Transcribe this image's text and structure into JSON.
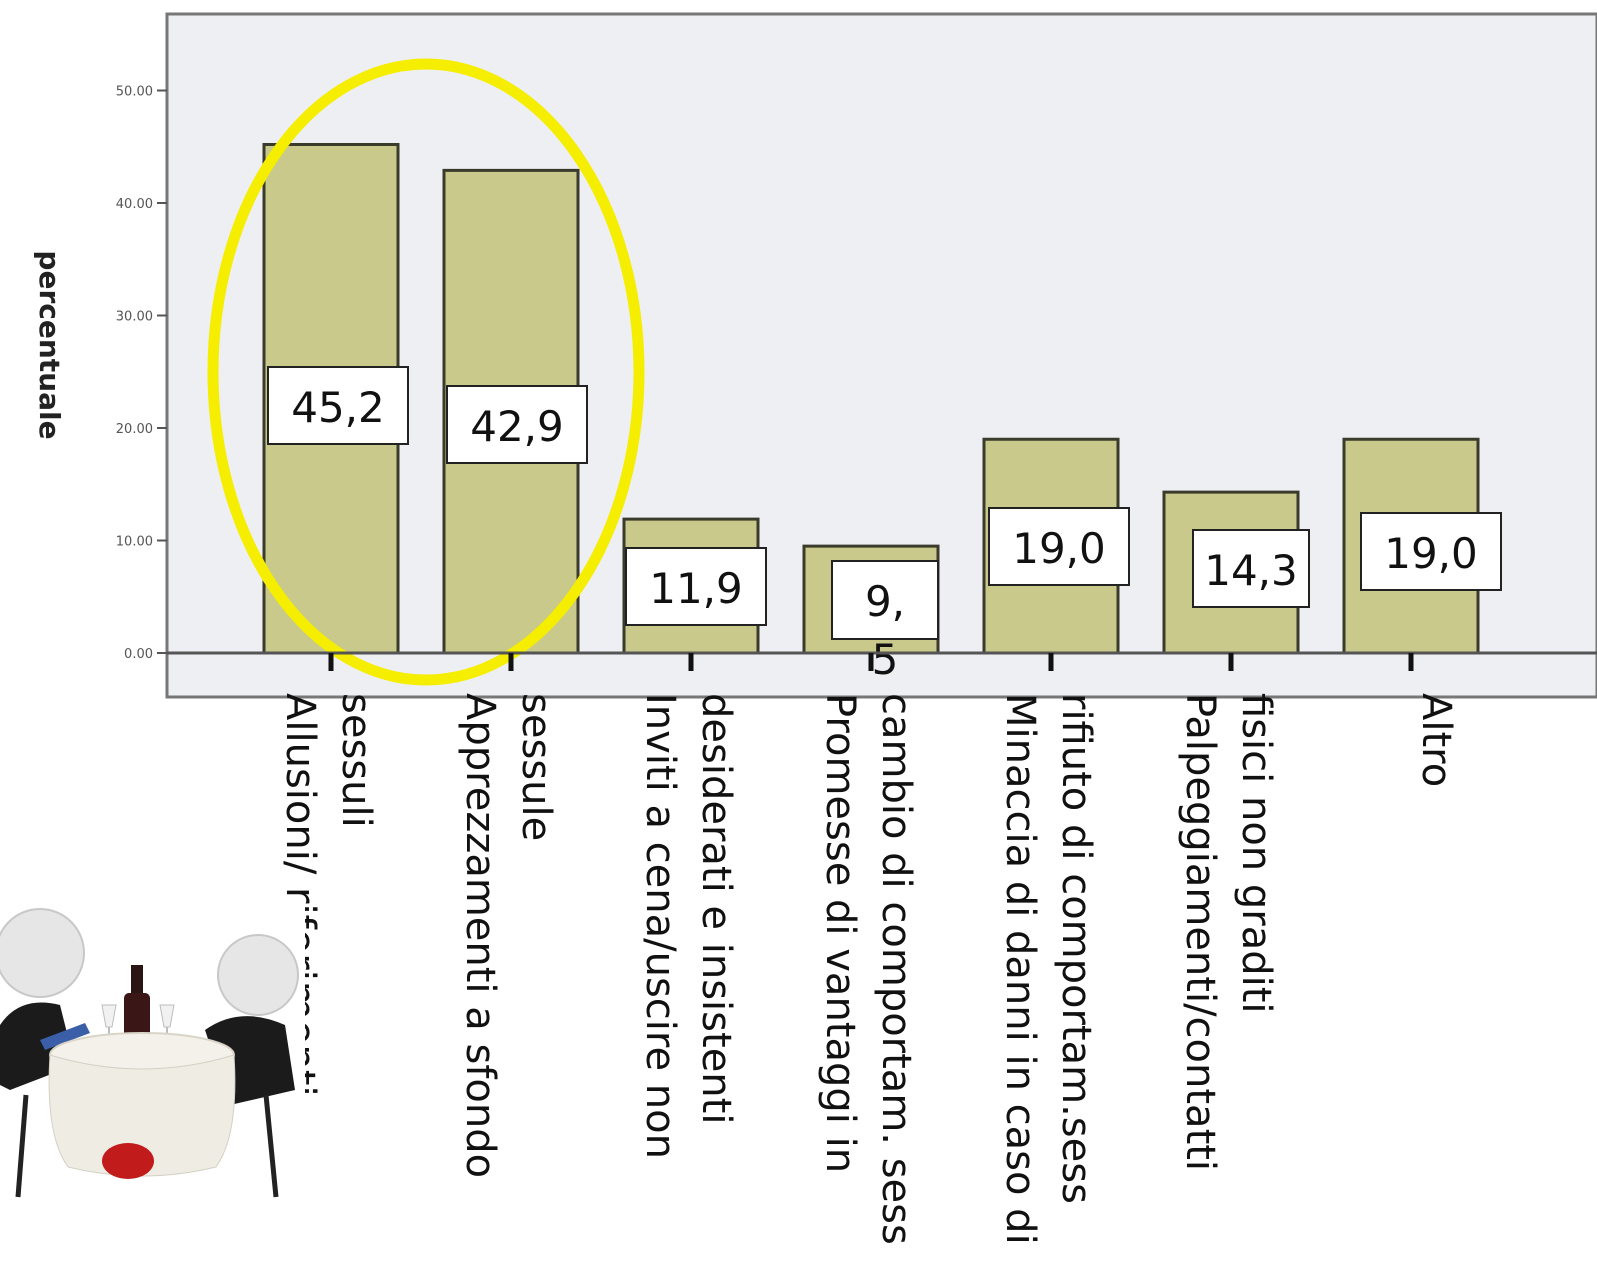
{
  "chart_data": {
    "type": "bar",
    "ylabel": "percentuale",
    "ylim": [
      0,
      55
    ],
    "yticks": [
      0,
      10,
      20,
      30,
      40,
      50
    ],
    "ytick_labels": [
      "0.00",
      "10.00",
      "20.00",
      "30.00",
      "40.00",
      "50.00"
    ],
    "categories": [
      [
        "Allusioni/ riferimenti",
        "sessuli"
      ],
      [
        "Apprezzamenti a sfondo",
        "sessule"
      ],
      [
        "Inviti a cena/uscire non",
        "desiderati e insistenti"
      ],
      [
        "Promesse di vantaggi in",
        "cambio di comportam. sess"
      ],
      [
        "Minaccia di danni in caso di",
        "rifiuto di comportam.sess"
      ],
      [
        "Palpeggiamenti/contatti",
        "fisici non graditi"
      ],
      [
        "Altro"
      ]
    ],
    "values": [
      45.2,
      42.9,
      11.9,
      9.5,
      19.0,
      14.3,
      19.0
    ],
    "value_labels": [
      [
        "45,2"
      ],
      [
        "42,9"
      ],
      [
        "11,9"
      ],
      [
        "9,",
        "5"
      ],
      [
        "19,0"
      ],
      [
        "14,3"
      ],
      [
        "19,0"
      ]
    ],
    "highlight": {
      "categories": [
        0,
        1
      ],
      "shape": "ellipse",
      "color": "#f5ee00"
    },
    "colors": {
      "bar": "#c8c98a",
      "bar_edge": "#3b3b2c",
      "plot_bg": "#eeeff3",
      "frame": "#777777"
    }
  },
  "illustration": {
    "name": "people-at-dinner-table-icon"
  }
}
